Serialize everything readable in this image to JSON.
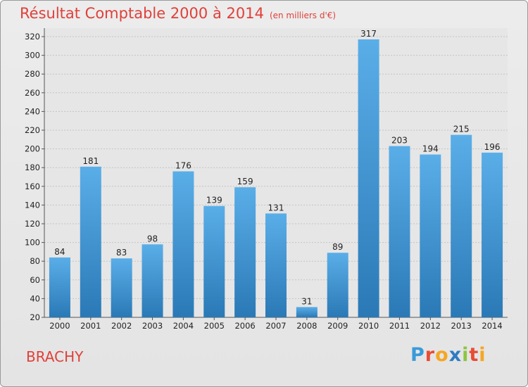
{
  "title": "Résultat Comptable 2000 à 2014",
  "subtitle": "(en milliers d'€)",
  "place": "BRACHY",
  "logo": {
    "letters": [
      "P",
      "r",
      "o",
      "x",
      "i",
      "t",
      "i"
    ]
  },
  "colors": {
    "bar_top": "#5aaee8",
    "bar_bottom": "#2a79b6",
    "title": "#e0403a"
  },
  "chart_data": {
    "type": "bar",
    "categories": [
      "2000",
      "2001",
      "2002",
      "2003",
      "2004",
      "2005",
      "2006",
      "2007",
      "2008",
      "2009",
      "2010",
      "2011",
      "2012",
      "2013",
      "2014"
    ],
    "values": [
      84,
      181,
      83,
      98,
      176,
      139,
      159,
      131,
      31,
      89,
      317,
      203,
      194,
      215,
      196
    ],
    "ylim": [
      20,
      320
    ],
    "yticks": [
      20,
      40,
      60,
      80,
      100,
      120,
      140,
      160,
      180,
      200,
      220,
      240,
      260,
      280,
      300,
      320
    ],
    "grid": true,
    "xlabel": "",
    "ylabel": ""
  }
}
